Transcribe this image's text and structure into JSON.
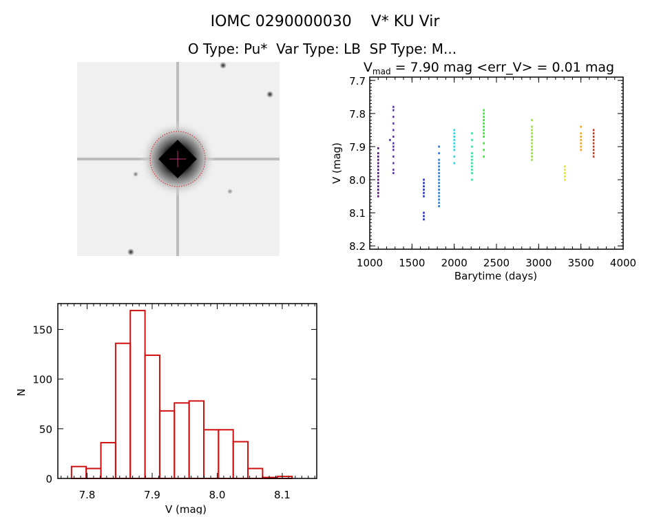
{
  "header": {
    "title": "IOMC 0290000030    V* KU Vir",
    "subtitle": "O Type: Pu*  Var Type: LB  SP Type: M..."
  },
  "colors": {
    "histogram": "#d01010",
    "axes": "#000000",
    "circle": "#e02020"
  },
  "chart_data": [
    {
      "type": "image",
      "description_icon": "star-field-image"
    },
    {
      "type": "scatter",
      "title_parts": {
        "v": "V",
        "sub": "mad",
        "rest": " = 7.90 mag <err_V> = 0.01 mag"
      },
      "xlabel": "Barytime (days)",
      "ylabel": "V (mag)",
      "xlim": [
        1000,
        4000
      ],
      "ylim": [
        7.69,
        8.21
      ],
      "y_inverted": true,
      "xticks": [
        "1000",
        "1500",
        "2000",
        "2500",
        "3000",
        "3500",
        "4000"
      ],
      "yticks": [
        "7.7",
        "7.8",
        "7.9",
        "8.0",
        "8.1",
        "8.2"
      ],
      "series": [
        {
          "x": 1100,
          "color": "#4a1070",
          "y": [
            7.905,
            7.92,
            7.93,
            7.94,
            7.95,
            7.96,
            7.97,
            7.98,
            7.99,
            8.0,
            8.01,
            8.02,
            8.03,
            8.04,
            8.05
          ]
        },
        {
          "x": 1280,
          "color": "#5028a0",
          "y": [
            7.78,
            7.79,
            7.81,
            7.83,
            7.85,
            7.87,
            7.89,
            7.9,
            7.91,
            7.93,
            7.95,
            7.97,
            7.98
          ]
        },
        {
          "x": 1240,
          "color": "#5028a0",
          "y": [
            7.88
          ]
        },
        {
          "x": 1640,
          "color": "#1820c8",
          "y": [
            8.0,
            8.01,
            8.02,
            8.03,
            8.04,
            8.05,
            8.1,
            8.11,
            8.12
          ]
        },
        {
          "x": 1820,
          "color": "#1a70e0",
          "y": [
            7.9,
            7.92,
            7.94,
            7.95,
            7.96,
            7.97,
            7.98,
            7.99,
            8.0,
            8.01,
            8.02,
            8.03,
            8.04,
            8.05,
            8.06,
            8.07,
            8.08
          ]
        },
        {
          "x": 2000,
          "color": "#28d0e8",
          "y": [
            7.85,
            7.86,
            7.87,
            7.88,
            7.89,
            7.9,
            7.91,
            7.93,
            7.95
          ]
        },
        {
          "x": 2210,
          "color": "#20e098",
          "y": [
            7.86,
            7.88,
            7.9,
            7.92,
            7.93,
            7.94,
            7.95,
            7.96,
            7.97,
            7.98,
            8.0
          ]
        },
        {
          "x": 2350,
          "color": "#28e028",
          "y": [
            7.79,
            7.8,
            7.81,
            7.82,
            7.83,
            7.84,
            7.85,
            7.86,
            7.87,
            7.89,
            7.91,
            7.93
          ]
        },
        {
          "x": 2920,
          "color": "#88e020",
          "y": [
            7.82,
            7.84,
            7.85,
            7.86,
            7.87,
            7.88,
            7.89,
            7.9,
            7.91,
            7.92,
            7.93,
            7.94
          ]
        },
        {
          "x": 3310,
          "color": "#e0e020",
          "y": [
            7.96,
            7.97,
            7.98,
            7.99,
            8.0
          ]
        },
        {
          "x": 3500,
          "color": "#f0a020",
          "y": [
            7.84,
            7.86,
            7.87,
            7.88,
            7.89,
            7.9,
            7.91
          ]
        },
        {
          "x": 3650,
          "color": "#e03010",
          "y": [
            7.85,
            7.86,
            7.87,
            7.88,
            7.89,
            7.9,
            7.91,
            7.92,
            7.93
          ]
        }
      ]
    },
    {
      "type": "bar",
      "subtype": "histogram",
      "xlabel": "V (mag)",
      "ylabel": "N",
      "xlim": [
        7.755,
        8.153
      ],
      "ylim": [
        0,
        176
      ],
      "xticks": [
        "7.8",
        "7.9",
        "8.0",
        "8.1"
      ],
      "yticks": [
        "0",
        "50",
        "100",
        "150"
      ],
      "bin_start": 7.776,
      "bin_width": 0.0226,
      "values": [
        12,
        10,
        36,
        136,
        169,
        124,
        68,
        76,
        78,
        49,
        49,
        37,
        10,
        1,
        2
      ]
    }
  ]
}
